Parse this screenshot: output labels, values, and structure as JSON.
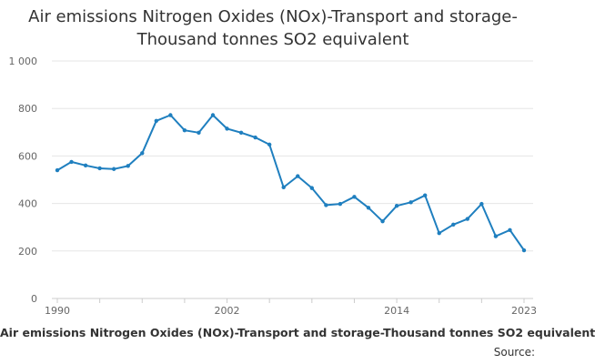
{
  "chart_data": {
    "type": "line",
    "title_lines": [
      "Air emissions Nitrogen Oxides (NOx)-Transport and storage-",
      "Thousand tonnes SO2 equivalent"
    ],
    "xlabel": "Air emissions Nitrogen Oxides (NOx)-Transport and storage-Thousand tonnes SO2 equivalent",
    "source": "Source:",
    "ylim": [
      0,
      1000
    ],
    "yticks": [
      0,
      200,
      400,
      600,
      800,
      1000
    ],
    "ytick_labels": [
      "0",
      "200",
      "400",
      "600",
      "800",
      "1 000"
    ],
    "xlim": [
      1990,
      2023
    ],
    "xtick_labels_at": [
      1990,
      2002,
      2014,
      2023
    ],
    "grid": true,
    "color": "#1f7fbf",
    "x": [
      1990,
      1991,
      1992,
      1993,
      1994,
      1995,
      1996,
      1997,
      1998,
      1999,
      2000,
      2001,
      2002,
      2003,
      2004,
      2005,
      2006,
      2007,
      2008,
      2009,
      2010,
      2011,
      2012,
      2013,
      2014,
      2015,
      2016,
      2017,
      2018,
      2019,
      2020,
      2021,
      2022,
      2023
    ],
    "values": [
      540,
      575,
      560,
      548,
      545,
      558,
      612,
      748,
      772,
      708,
      698,
      772,
      715,
      698,
      678,
      648,
      468,
      515,
      465,
      393,
      398,
      428,
      382,
      325,
      390,
      405,
      434,
      275,
      311,
      335,
      398,
      262,
      288,
      203
    ]
  }
}
